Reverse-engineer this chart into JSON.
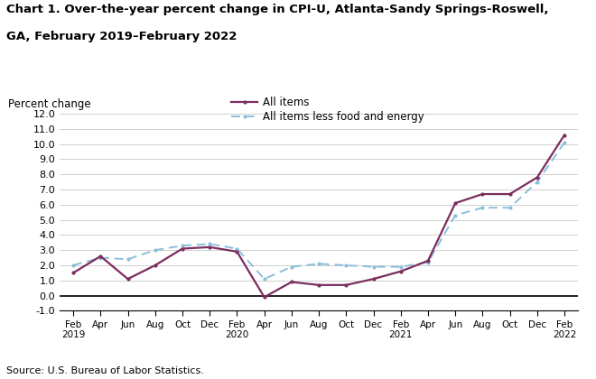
{
  "title_line1": "Chart 1. Over-the-year percent change in CPI-U, Atlanta-Sandy Springs-Roswell,",
  "title_line2": "GA, February 2019–February 2022",
  "ylabel": "Percent change",
  "source": "Source: U.S. Bureau of Labor Statistics.",
  "ylim": [
    -1.0,
    12.0
  ],
  "yticks": [
    -1.0,
    0.0,
    1.0,
    2.0,
    3.0,
    4.0,
    5.0,
    6.0,
    7.0,
    8.0,
    9.0,
    10.0,
    11.0,
    12.0
  ],
  "all_items": [
    1.5,
    2.6,
    1.1,
    2.0,
    3.1,
    3.2,
    2.9,
    -0.1,
    0.9,
    0.7,
    0.7,
    1.1,
    1.6,
    2.3,
    6.1,
    6.7,
    6.7,
    7.8,
    10.6
  ],
  "core_items": [
    2.0,
    2.5,
    2.4,
    3.0,
    3.3,
    3.4,
    3.1,
    1.1,
    1.9,
    2.1,
    2.0,
    1.9,
    1.9,
    2.2,
    5.3,
    5.8,
    5.8,
    7.5,
    10.1
  ],
  "all_items_color": "#7B2D5E",
  "core_items_color": "#8BBFDA",
  "tick_labels": [
    "Feb\n2019",
    "Apr",
    "Jun",
    "Aug",
    "Oct",
    "Dec",
    "Feb\n2020",
    "Apr",
    "Jun",
    "Aug",
    "Oct",
    "Dec",
    "Feb\n2021",
    "Apr",
    "Jun",
    "Aug",
    "Oct",
    "Dec",
    "Feb\n2022"
  ],
  "legend_all": "All items",
  "legend_core": "All items less food and energy"
}
